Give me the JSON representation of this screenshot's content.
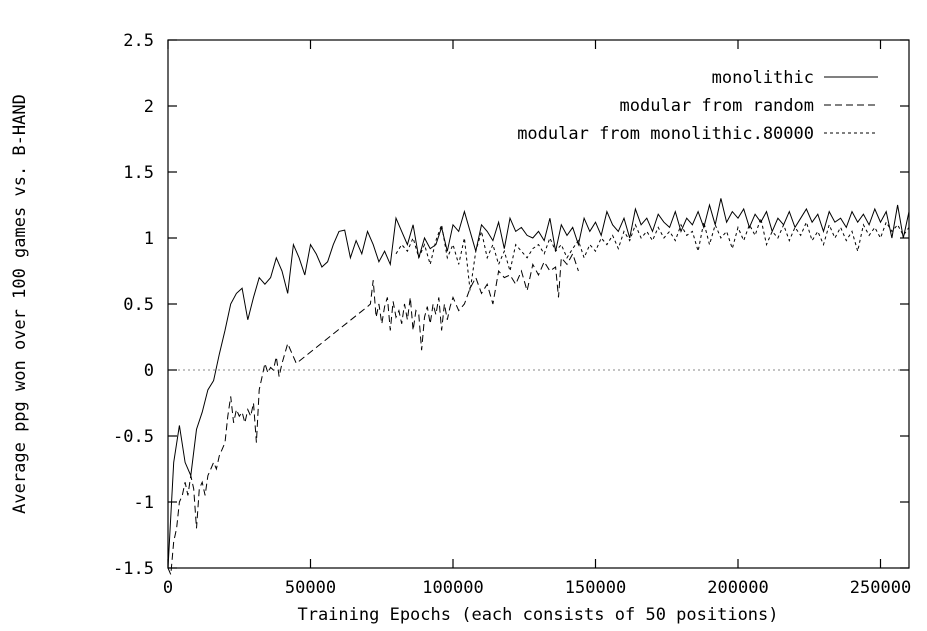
{
  "chart_data": {
    "type": "line",
    "title": "",
    "xlabel": "Training Epochs (each consists of 50 positions)",
    "ylabel": "Average ppg won over 100 games vs. B-HAND",
    "xlim": [
      0,
      260000
    ],
    "ylim": [
      -1.5,
      2.5
    ],
    "x_ticks": [
      0,
      50000,
      100000,
      150000,
      200000,
      250000
    ],
    "x_tick_labels": [
      "0",
      "50000",
      "100000",
      "150000",
      "200000",
      "250000"
    ],
    "y_ticks": [
      -1.5,
      -1,
      -0.5,
      0,
      0.5,
      1,
      1.5,
      2,
      2.5
    ],
    "y_tick_labels": [
      "-1.5",
      "-1",
      "-0.5",
      "0",
      "0.5",
      "1",
      "1.5",
      "2",
      "2.5"
    ],
    "grid": false,
    "legend_position": "top-right",
    "reference_line": {
      "y": 0,
      "style": "dotted",
      "color": "#888888"
    },
    "series": [
      {
        "name": "monolithic",
        "style": "solid",
        "x": [
          0,
          2000,
          4000,
          6000,
          8000,
          10000,
          12000,
          14000,
          16000,
          18000,
          20000,
          22000,
          24000,
          26000,
          28000,
          30000,
          32000,
          34000,
          36000,
          38000,
          40000,
          42000,
          44000,
          46000,
          48000,
          50000,
          52000,
          54000,
          56000,
          58000,
          60000,
          62000,
          64000,
          66000,
          68000,
          70000,
          72000,
          74000,
          76000,
          78000,
          80000,
          82000,
          84000,
          86000,
          88000,
          90000,
          92000,
          94000,
          96000,
          98000,
          100000,
          102000,
          104000,
          106000,
          108000,
          110000,
          112000,
          114000,
          116000,
          118000,
          120000,
          122000,
          124000,
          126000,
          128000,
          130000,
          132000,
          134000,
          136000,
          138000,
          140000,
          142000,
          144000,
          146000,
          148000,
          150000,
          152000,
          154000,
          156000,
          158000,
          160000,
          162000,
          164000,
          166000,
          168000,
          170000,
          172000,
          174000,
          176000,
          178000,
          180000,
          182000,
          184000,
          186000,
          188000,
          190000,
          192000,
          194000,
          196000,
          198000,
          200000,
          202000,
          204000,
          206000,
          208000,
          210000,
          212000,
          214000,
          216000,
          218000,
          220000,
          222000,
          224000,
          226000,
          228000,
          230000,
          232000,
          234000,
          236000,
          238000,
          240000,
          242000,
          244000,
          246000,
          248000,
          250000,
          252000,
          254000,
          256000,
          258000,
          260000
        ],
        "y": [
          -1.5,
          -0.7,
          -0.42,
          -0.7,
          -0.8,
          -0.45,
          -0.32,
          -0.15,
          -0.08,
          0.12,
          0.3,
          0.5,
          0.58,
          0.62,
          0.38,
          0.55,
          0.7,
          0.65,
          0.7,
          0.85,
          0.75,
          0.58,
          0.95,
          0.85,
          0.72,
          0.95,
          0.88,
          0.78,
          0.82,
          0.95,
          1.05,
          1.06,
          0.85,
          0.98,
          0.88,
          1.05,
          0.95,
          0.82,
          0.9,
          0.8,
          1.15,
          1.05,
          0.95,
          1.1,
          0.85,
          1.0,
          0.92,
          0.95,
          1.08,
          0.9,
          1.1,
          1.05,
          1.2,
          1.05,
          0.9,
          1.1,
          1.05,
          0.98,
          1.12,
          0.92,
          1.15,
          1.05,
          1.08,
          1.02,
          1.0,
          1.05,
          0.98,
          1.15,
          0.9,
          1.1,
          1.02,
          1.08,
          0.95,
          1.15,
          1.05,
          1.12,
          1.02,
          1.2,
          1.1,
          1.05,
          1.15,
          1.0,
          1.22,
          1.1,
          1.15,
          1.05,
          1.18,
          1.12,
          1.08,
          1.2,
          1.05,
          1.15,
          1.1,
          1.2,
          1.08,
          1.25,
          1.1,
          1.3,
          1.12,
          1.2,
          1.15,
          1.22,
          1.08,
          1.18,
          1.12,
          1.2,
          1.05,
          1.15,
          1.1,
          1.2,
          1.08,
          1.15,
          1.22,
          1.12,
          1.18,
          1.05,
          1.2,
          1.12,
          1.15,
          1.08,
          1.2,
          1.12,
          1.18,
          1.1,
          1.22,
          1.12,
          1.2,
          1.0,
          1.25,
          1.0,
          1.2
        ]
      },
      {
        "name": "modular from random",
        "style": "dashed",
        "x": [
          0,
          1000,
          2000,
          3000,
          4000,
          5000,
          6000,
          7000,
          8000,
          9000,
          10000,
          11000,
          12000,
          13000,
          14000,
          15000,
          16000,
          17000,
          18000,
          19000,
          20000,
          21000,
          22000,
          23000,
          24000,
          25000,
          26000,
          27000,
          28000,
          29000,
          30000,
          31000,
          32000,
          33000,
          34000,
          35000,
          36000,
          37000,
          38000,
          39000,
          40000,
          42000,
          45000,
          70000,
          71000,
          72000,
          73000,
          74000,
          75000,
          76000,
          77000,
          78000,
          79000,
          80000,
          81000,
          82000,
          83000,
          84000,
          85000,
          86000,
          87000,
          88000,
          89000,
          90000,
          91000,
          92000,
          93000,
          94000,
          95000,
          96000,
          97000,
          98000,
          99000,
          100000,
          102000,
          104000,
          106000,
          108000,
          110000,
          112000,
          114000,
          116000,
          118000,
          120000,
          122000,
          124000,
          126000,
          128000,
          130000,
          132000,
          134000,
          136000,
          137000,
          138000,
          140000,
          142000,
          144000
        ],
        "y": [
          -1.5,
          -1.55,
          -1.3,
          -1.2,
          -1.0,
          -0.95,
          -0.85,
          -0.95,
          -0.8,
          -0.9,
          -1.2,
          -0.9,
          -0.85,
          -0.95,
          -0.8,
          -0.75,
          -0.7,
          -0.75,
          -0.65,
          -0.6,
          -0.55,
          -0.35,
          -0.2,
          -0.4,
          -0.3,
          -0.35,
          -0.32,
          -0.4,
          -0.3,
          -0.35,
          -0.25,
          -0.55,
          -0.15,
          -0.05,
          0.05,
          -0.02,
          0.02,
          0.0,
          0.1,
          -0.05,
          0.05,
          0.2,
          0.05,
          0.48,
          0.5,
          0.68,
          0.4,
          0.5,
          0.35,
          0.48,
          0.55,
          0.3,
          0.52,
          0.4,
          0.45,
          0.35,
          0.5,
          0.38,
          0.55,
          0.3,
          0.45,
          0.42,
          0.15,
          0.4,
          0.48,
          0.35,
          0.5,
          0.42,
          0.55,
          0.3,
          0.5,
          0.38,
          0.48,
          0.55,
          0.45,
          0.5,
          0.62,
          0.7,
          0.58,
          0.65,
          0.5,
          0.75,
          0.7,
          0.72,
          0.65,
          0.75,
          0.6,
          0.8,
          0.72,
          0.82,
          0.75,
          0.78,
          0.55,
          0.85,
          0.8,
          0.88,
          0.75
        ]
      },
      {
        "name": "modular from monolithic.80000",
        "style": "dotted",
        "x": [
          80000,
          82000,
          84000,
          86000,
          88000,
          90000,
          92000,
          94000,
          96000,
          98000,
          100000,
          102000,
          104000,
          106000,
          108000,
          110000,
          112000,
          114000,
          116000,
          118000,
          120000,
          122000,
          124000,
          126000,
          128000,
          130000,
          132000,
          134000,
          136000,
          138000,
          140000,
          142000,
          144000,
          146000,
          148000,
          150000,
          152000,
          154000,
          156000,
          158000,
          160000,
          162000,
          164000,
          166000,
          168000,
          170000,
          172000,
          174000,
          176000,
          178000,
          180000,
          182000,
          184000,
          186000,
          188000,
          190000,
          192000,
          194000,
          196000,
          198000,
          200000,
          202000,
          204000,
          206000,
          208000,
          210000,
          212000,
          214000,
          216000,
          218000,
          220000,
          222000,
          224000,
          226000,
          228000,
          230000,
          232000,
          234000,
          236000,
          238000,
          240000,
          242000,
          244000,
          246000,
          248000,
          250000,
          252000,
          254000,
          256000,
          258000,
          260000
        ],
        "y": [
          0.88,
          0.95,
          0.9,
          1.0,
          0.85,
          0.95,
          0.8,
          0.98,
          1.1,
          0.85,
          0.95,
          0.8,
          1.0,
          0.6,
          0.9,
          1.05,
          0.85,
          0.95,
          0.8,
          0.9,
          0.75,
          0.95,
          0.9,
          0.85,
          0.92,
          0.95,
          0.88,
          1.0,
          0.9,
          0.95,
          0.85,
          0.92,
          0.98,
          0.85,
          0.95,
          0.9,
          1.0,
          0.95,
          1.02,
          0.92,
          1.05,
          0.98,
          1.1,
          1.0,
          1.05,
          0.98,
          1.08,
          1.0,
          1.05,
          0.98,
          1.1,
          1.02,
          1.05,
          0.9,
          1.12,
          0.95,
          1.1,
          1.0,
          1.05,
          0.92,
          1.08,
          0.98,
          1.1,
          1.02,
          1.15,
          0.95,
          1.05,
          1.0,
          1.1,
          0.98,
          1.08,
          1.02,
          1.12,
          0.98,
          1.05,
          0.95,
          1.1,
          1.0,
          1.08,
          0.98,
          1.05,
          0.9,
          1.1,
          1.02,
          1.08,
          1.0,
          1.12,
          1.05,
          1.1,
          1.02,
          1.08
        ]
      }
    ]
  }
}
